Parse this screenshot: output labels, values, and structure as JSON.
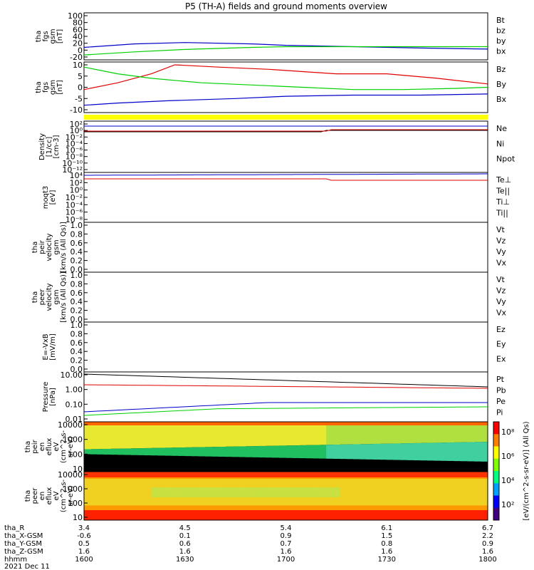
{
  "title": "P5 (TH-A) fields and ground moments overview",
  "colors": {
    "black": "#000000",
    "red": "#e00000",
    "green": "#00d000",
    "blue": "#0000c8",
    "yellow": "#ffff00"
  },
  "chart_data": {
    "type": "line",
    "x_label_hhmm": "hhmm",
    "date_label": "2021 Dec 11",
    "x_ticks": [
      "1600",
      "1630",
      "1700",
      "1730",
      "1800"
    ],
    "orbit_rows": [
      {
        "label": "tha_R",
        "values": [
          "3.4",
          "4.5",
          "5.4",
          "6.1",
          "6.7"
        ]
      },
      {
        "label": "tha_X-GSM",
        "values": [
          "-0.6",
          "0.1",
          "0.9",
          "1.5",
          "2.2"
        ]
      },
      {
        "label": "tha_Y-GSM",
        "values": [
          "0.5",
          "0.6",
          "0.7",
          "0.8",
          "0.9"
        ]
      },
      {
        "label": "tha_Z-GSM",
        "values": [
          "1.6",
          "1.6",
          "1.6",
          "1.6",
          "1.6"
        ]
      }
    ],
    "panels": [
      {
        "ylabel": [
          "tha",
          "fgs",
          "gsm",
          "[nT]"
        ],
        "yticks": [
          "100",
          "80",
          "60",
          "40",
          "20",
          "0",
          "-20"
        ],
        "legend": [
          {
            "text": "Bt",
            "color": "black"
          },
          {
            "text": "bz",
            "color": "red"
          },
          {
            "text": "by",
            "color": "green"
          },
          {
            "text": "bx",
            "color": "blue"
          }
        ],
        "series": [
          {
            "name": "bx",
            "color": "blue",
            "t": [
              1600,
              1615,
              1630,
              1650,
              1700,
              1720,
              1740,
              1800
            ],
            "y": [
              8,
              18,
              22,
              18,
              14,
              10,
              6,
              3
            ]
          },
          {
            "name": "by",
            "color": "green",
            "t": [
              1600,
              1615,
              1630,
              1650,
              1700,
              1720,
              1740,
              1800
            ],
            "y": [
              -14,
              -5,
              2,
              8,
              10,
              10,
              10,
              10
            ]
          }
        ]
      },
      {
        "ylabel": [
          "tha",
          "fgs",
          "gsm",
          "[nT]"
        ],
        "yticks": [
          "10",
          "5",
          "0",
          "-5",
          "-10"
        ],
        "legend": [
          {
            "text": "Bz",
            "color": "red"
          },
          {
            "text": "By",
            "color": "green"
          },
          {
            "text": "Bx",
            "color": "blue"
          }
        ],
        "series": [
          {
            "name": "Bz",
            "color": "red",
            "t": [
              1600,
              1610,
              1620,
              1627,
              1640,
              1655,
              1705,
              1715,
              1730,
              1745,
              1800
            ],
            "y": [
              -1,
              2,
              6,
              10,
              9,
              8,
              7,
              6,
              6,
              4,
              1.5
            ]
          },
          {
            "name": "By",
            "color": "green",
            "t": [
              1600,
              1610,
              1620,
              1635,
              1650,
              1705,
              1720,
              1735,
              1750,
              1800
            ],
            "y": [
              9,
              6,
              4,
              2,
              1,
              0,
              -1,
              -1,
              -0.5,
              0
            ]
          },
          {
            "name": "Bx",
            "color": "blue",
            "t": [
              1600,
              1610,
              1625,
              1645,
              1700,
              1720,
              1740,
              1800
            ],
            "y": [
              -8,
              -7,
              -6,
              -5,
              -4,
              -3.5,
              -3.5,
              -3
            ]
          }
        ]
      },
      {
        "ylabel": [
          "Density",
          "[1/cc]",
          "[cm-3]"
        ],
        "yticks": [
          "10^2",
          "10^0",
          "10^-2",
          "10^-4",
          "10^-6",
          "10^-8",
          "10^-10",
          "10^-12"
        ],
        "legend": [
          {
            "text": "Ne",
            "color": "red"
          },
          {
            "text": "Ni",
            "color": "black"
          },
          {
            "text": "Npot",
            "color": "blue"
          }
        ]
      },
      {
        "ylabel": [
          "moqt3",
          "[eV]"
        ],
        "yticks": [
          "10^4",
          "10^2",
          "10^0",
          "10^-2",
          "10^-4",
          "10^-6",
          "10^-8"
        ],
        "legend": [
          {
            "text": "Te⊥",
            "color": "red"
          },
          {
            "text": "Te||",
            "color": "black"
          },
          {
            "text": "Ti⊥",
            "color": "blue"
          },
          {
            "text": "Ti||",
            "color": "green"
          }
        ]
      },
      {
        "ylabel": [
          "tha",
          "peir",
          "velocity",
          "gsm",
          "[km/s (All Qs)]"
        ],
        "yticks": [
          "1.0",
          "0.8",
          "0.6",
          "0.4",
          "0.2",
          "0.0"
        ],
        "legend": [
          {
            "text": "Vt",
            "color": "black"
          },
          {
            "text": "Vz",
            "color": "red"
          },
          {
            "text": "Vy",
            "color": "green"
          },
          {
            "text": "Vx",
            "color": "blue"
          }
        ]
      },
      {
        "ylabel": [
          "tha",
          "peer",
          "velocity",
          "gsm",
          "[km/s (All Qs)]"
        ],
        "yticks": [
          "1.0",
          "0.8",
          "0.6",
          "0.4",
          "0.2",
          "0.0"
        ],
        "legend": [
          {
            "text": "Vt",
            "color": "black"
          },
          {
            "text": "Vz",
            "color": "red"
          },
          {
            "text": "Vy",
            "color": "green"
          },
          {
            "text": "Vx",
            "color": "blue"
          }
        ]
      },
      {
        "ylabel": [
          "E=-VxB",
          "[mV/m]"
        ],
        "yticks": [
          "1.0",
          "0.8",
          "0.6",
          "0.4",
          "0.2",
          "0.0"
        ],
        "legend": [
          {
            "text": "Ez",
            "color": "red"
          },
          {
            "text": "Ey",
            "color": "green"
          },
          {
            "text": "Ex",
            "color": "blue"
          }
        ]
      },
      {
        "ylabel": [
          "Pressure",
          "[nPa]"
        ],
        "yticks": [
          "10.00",
          "1.00",
          "0.10",
          "0.01"
        ],
        "legend": [
          {
            "text": "Pt",
            "color": "black"
          },
          {
            "text": "Pb",
            "color": "red"
          },
          {
            "text": "Pe",
            "color": "green"
          },
          {
            "text": "Pi",
            "color": "blue"
          }
        ]
      },
      {
        "ylabel": [
          "tha",
          "peir",
          "en",
          "eflux",
          "eV",
          "(cm^2-s-",
          "sr-eV)"
        ],
        "yticks": [
          "10000",
          "1000",
          "100",
          "10"
        ]
      },
      {
        "ylabel": [
          "tha",
          "peer",
          "en",
          "eflux",
          "eV",
          "(cm^2-s-",
          "sr-eV)"
        ],
        "yticks": [
          "10000",
          "1000",
          "100",
          "10"
        ]
      }
    ],
    "colorbar": {
      "ticks": [
        "10^8",
        "10^6",
        "10^4",
        "10^2"
      ],
      "label": "[eV/(cm^2-s-sr-eV)] (All Qs)"
    }
  }
}
